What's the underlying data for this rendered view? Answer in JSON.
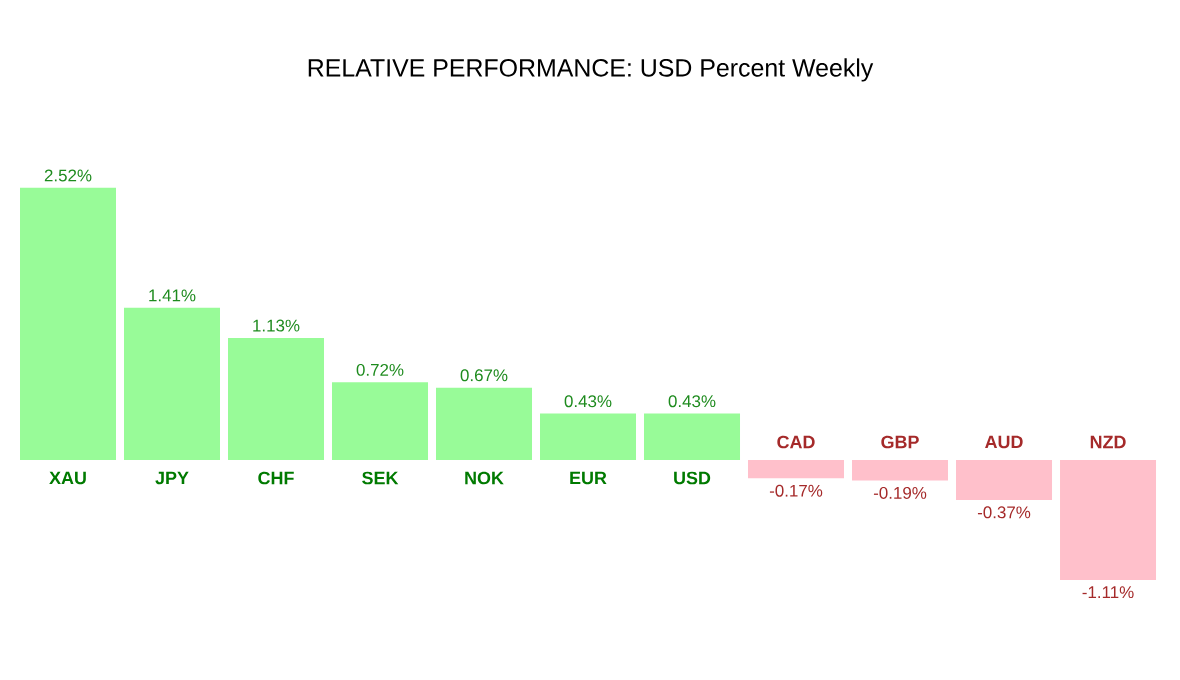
{
  "chart_data": {
    "type": "bar",
    "title": "RELATIVE PERFORMANCE: USD Percent Weekly",
    "categories": [
      "XAU",
      "JPY",
      "CHF",
      "SEK",
      "NOK",
      "EUR",
      "USD",
      "CAD",
      "GBP",
      "AUD",
      "NZD"
    ],
    "values": [
      2.52,
      1.41,
      1.13,
      0.72,
      0.67,
      0.43,
      0.43,
      -0.17,
      -0.19,
      -0.37,
      -1.11
    ],
    "value_labels": [
      "2.52%",
      "1.41%",
      "1.13%",
      "0.72%",
      "0.67%",
      "0.43%",
      "0.43%",
      "-0.17%",
      "-0.19%",
      "-0.37%",
      "-1.11%"
    ],
    "colors": [
      "#98fb98",
      "#98fb98",
      "#98fb98",
      "#98fb98",
      "#98fb98",
      "#98fb98",
      "#98fb98",
      "#ffc0cb",
      "#ffc0cb",
      "#ffc0cb",
      "#ffc0cb"
    ]
  }
}
